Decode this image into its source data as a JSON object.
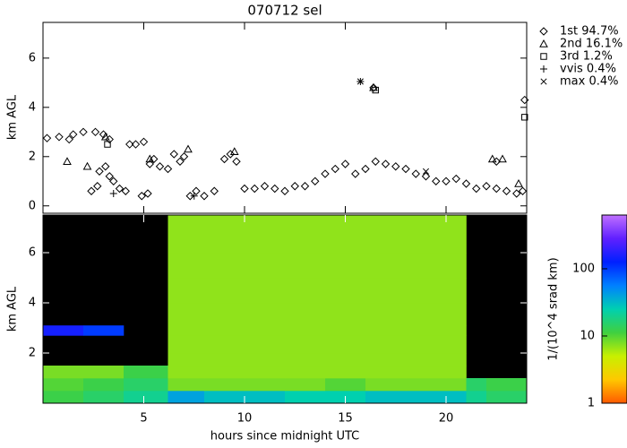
{
  "chart_data": [
    {
      "type": "scatter",
      "title": "070712 sel",
      "ylabel": "km AGL",
      "xlim": [
        0,
        24
      ],
      "xticks": [
        5,
        10,
        15,
        20
      ],
      "ylim": [
        -0.3,
        7.45
      ],
      "yticks": [
        0,
        2,
        4,
        6
      ],
      "series": [
        {
          "name": "1st 94.7%",
          "marker": "diamond",
          "color": "#000000",
          "x": [
            0.2,
            0.8,
            1.5,
            2.0,
            2.6,
            1.3,
            3.0,
            3.3,
            3.1,
            3.3,
            3.5,
            2.8,
            2.4,
            2.7,
            3.8,
            4.1,
            4.3,
            4.6,
            5.0,
            5.3,
            5.5,
            5.8,
            6.2,
            6.5,
            6.8,
            7.0,
            7.3,
            7.6,
            8.0,
            8.5,
            9.0,
            9.3,
            9.6,
            10.0,
            10.5,
            11.0,
            11.5,
            12.0,
            12.5,
            13.0,
            13.5,
            14.0,
            14.5,
            15.0,
            15.5,
            16.0,
            16.5,
            16.4,
            17.0,
            17.5,
            18.0,
            18.5,
            19.0,
            19.5,
            20.0,
            20.5,
            21.0,
            21.5,
            22.0,
            22.5,
            23.0,
            23.5,
            23.8,
            23.9,
            22.5,
            4.9,
            5.2
          ],
          "values": [
            2.75,
            2.8,
            2.9,
            3.0,
            3.0,
            2.7,
            2.9,
            2.7,
            1.6,
            1.2,
            1.0,
            1.4,
            0.6,
            0.8,
            0.7,
            0.6,
            2.5,
            2.5,
            2.6,
            1.7,
            1.9,
            1.6,
            1.5,
            2.1,
            1.8,
            2.0,
            0.4,
            0.6,
            0.4,
            0.6,
            1.9,
            2.1,
            1.8,
            0.7,
            0.7,
            0.8,
            0.7,
            0.6,
            0.8,
            0.8,
            1.0,
            1.3,
            1.5,
            1.7,
            1.3,
            1.5,
            1.8,
            4.8,
            1.7,
            1.6,
            1.5,
            1.3,
            1.2,
            1.0,
            1.0,
            1.1,
            0.9,
            0.7,
            0.8,
            0.7,
            0.6,
            0.5,
            0.6,
            4.3,
            1.8,
            0.4,
            0.5
          ]
        },
        {
          "name": "2nd 16.1%",
          "marker": "triangle",
          "color": "#000000",
          "x": [
            1.2,
            2.2,
            3.1,
            5.3,
            7.2,
            9.5,
            16.4,
            22.3,
            22.8,
            23.6
          ],
          "values": [
            1.8,
            1.6,
            2.8,
            1.9,
            2.3,
            2.2,
            4.8,
            1.9,
            1.9,
            0.9
          ]
        },
        {
          "name": "3rd  1.2%",
          "marker": "square",
          "color": "#000000",
          "x": [
            23.9,
            3.2,
            16.5
          ],
          "values": [
            3.6,
            2.5,
            4.7
          ]
        },
        {
          "name": "vvis  0.4%",
          "marker": "plus",
          "color": "#000000",
          "x": [
            15.75,
            3.5,
            7.5
          ],
          "values": [
            5.05,
            0.5,
            0.4
          ]
        },
        {
          "name": "max  0.4%",
          "marker": "cross",
          "color": "#000000",
          "x": [
            15.75,
            19.0
          ],
          "values": [
            5.05,
            1.4
          ]
        }
      ]
    },
    {
      "type": "heatmap",
      "xlabel": "hours since midnight UTC",
      "ylabel": "km AGL",
      "xlim": [
        0,
        24
      ],
      "xticks": [
        5,
        10,
        15,
        20
      ],
      "ylim": [
        0,
        7.5
      ],
      "yticks": [
        2,
        4,
        6
      ],
      "x_edges": [
        0,
        2,
        4,
        6.2,
        8,
        10,
        12,
        14,
        16,
        18,
        20,
        21,
        22,
        24
      ],
      "y_edges": [
        0,
        0.5,
        1,
        1.5,
        2,
        2.7,
        3.1,
        4,
        5,
        6,
        7.5
      ],
      "z": [
        [
          12,
          15,
          20,
          40,
          30,
          30,
          25,
          25,
          30,
          30,
          30,
          20,
          15
        ],
        [
          10,
          12,
          15,
          8,
          8,
          8,
          8,
          10,
          8,
          8,
          8,
          15,
          12
        ],
        [
          8,
          8,
          12,
          7,
          7,
          7,
          7,
          7,
          7,
          7,
          7,
          null,
          null
        ],
        [
          null,
          null,
          null,
          7,
          7,
          7,
          7,
          7,
          7,
          7,
          7,
          null,
          null
        ],
        [
          null,
          null,
          null,
          7,
          7,
          7,
          7,
          7,
          7,
          7,
          7,
          null,
          null
        ],
        [
          150,
          100,
          null,
          7,
          7,
          7,
          7,
          7,
          7,
          7,
          7,
          null,
          null
        ],
        [
          null,
          null,
          null,
          7,
          7,
          7,
          7,
          7,
          7,
          7,
          7,
          null,
          null
        ],
        [
          null,
          null,
          null,
          7,
          7,
          7,
          7,
          7,
          7,
          7,
          7,
          null,
          null
        ],
        [
          null,
          null,
          null,
          7,
          7,
          7,
          7,
          7,
          7,
          7,
          7,
          null,
          null
        ],
        [
          null,
          null,
          null,
          7,
          7,
          7,
          7,
          7,
          7,
          7,
          7,
          null,
          null
        ]
      ],
      "colorbar": {
        "label": "1/(10^4 srad km)",
        "log": true,
        "clim": [
          1,
          630
        ],
        "ticks": [
          1,
          10,
          100
        ],
        "colormap": [
          "#ff5a00",
          "#ffc800",
          "#c8f000",
          "#40d040",
          "#00d0b0",
          "#0080ff",
          "#0020ff",
          "#6020ff",
          "#c070ff"
        ]
      }
    }
  ]
}
